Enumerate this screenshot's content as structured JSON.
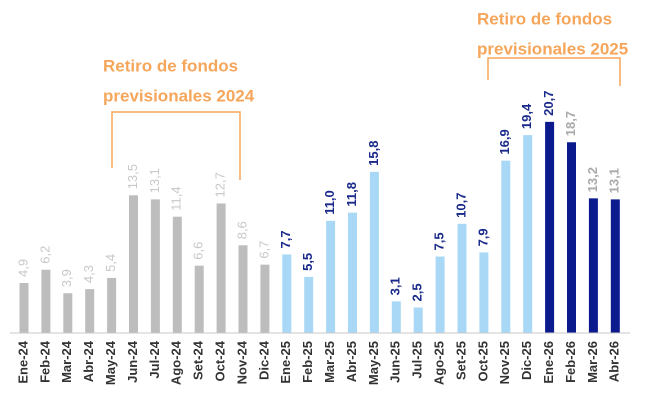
{
  "chart_data": {
    "type": "bar",
    "categories": [
      "Ene-24",
      "Feb-24",
      "Mar-24",
      "Abr-24",
      "May-24",
      "Jun-24",
      "Jul-24",
      "Ago-24",
      "Set-24",
      "Oct-24",
      "Nov-24",
      "Dic-24",
      "Ene-25",
      "Feb-25",
      "Mar-25",
      "Abr-25",
      "May-25",
      "Jun-25",
      "Jul-25",
      "Ago-25",
      "Set-25",
      "Oct-25",
      "Nov-25",
      "Dic-25",
      "Ene-26",
      "Feb-26",
      "Mar-26",
      "Abr-26"
    ],
    "values": [
      4.9,
      6.2,
      3.9,
      4.3,
      5.4,
      13.5,
      13.1,
      11.4,
      6.6,
      12.7,
      8.6,
      6.7,
      7.7,
      5.5,
      11.0,
      11.8,
      15.8,
      3.1,
      2.5,
      7.5,
      10.7,
      7.9,
      16.9,
      19.4,
      20.7,
      18.7,
      13.2,
      13.1
    ],
    "value_labels": [
      "4,9",
      "6,2",
      "3,9",
      "4,3",
      "5,4",
      "13,5",
      "13,1",
      "11,4",
      "6,6",
      "12,7",
      "8,6",
      "6,7",
      "7,7",
      "5,5",
      "11,0",
      "11,8",
      "15,8",
      "3,1",
      "2,5",
      "7,5",
      "10,7",
      "7,9",
      "16,9",
      "19,4",
      "20,7",
      "18,7",
      "13,2",
      "13,1"
    ],
    "colors": [
      "#bdbdbd",
      "#bdbdbd",
      "#bdbdbd",
      "#bdbdbd",
      "#bdbdbd",
      "#bdbdbd",
      "#bdbdbd",
      "#bdbdbd",
      "#bdbdbd",
      "#bdbdbd",
      "#bdbdbd",
      "#bdbdbd",
      "#a9d8f7",
      "#a9d8f7",
      "#a9d8f7",
      "#a9d8f7",
      "#a9d8f7",
      "#a9d8f7",
      "#a9d8f7",
      "#a9d8f7",
      "#a9d8f7",
      "#a9d8f7",
      "#a9d8f7",
      "#a9d8f7",
      "#0b1a8c",
      "#0b1a8c",
      "#0b1a8c",
      "#0b1a8c"
    ],
    "label_colors": [
      "#c8c8c8",
      "#c8c8c8",
      "#c8c8c8",
      "#c8c8c8",
      "#c8c8c8",
      "#c8c8c8",
      "#c8c8c8",
      "#c8c8c8",
      "#c8c8c8",
      "#c8c8c8",
      "#c8c8c8",
      "#c8c8c8",
      "#1a2a8a",
      "#1a2a8a",
      "#1a2a8a",
      "#1a2a8a",
      "#1a2a8a",
      "#1a2a8a",
      "#1a2a8a",
      "#1a2a8a",
      "#1a2a8a",
      "#1a2a8a",
      "#1a2a8a",
      "#1a2a8a",
      "#1a2a8a",
      "#aaaaaa",
      "#aaaaaa",
      "#aaaaaa"
    ],
    "annotations": [
      {
        "lines": [
          "Retiro de fondos",
          "previsionales 2024"
        ]
      },
      {
        "lines": [
          "Retiro de fondos",
          "previsionales 2025"
        ]
      }
    ]
  }
}
